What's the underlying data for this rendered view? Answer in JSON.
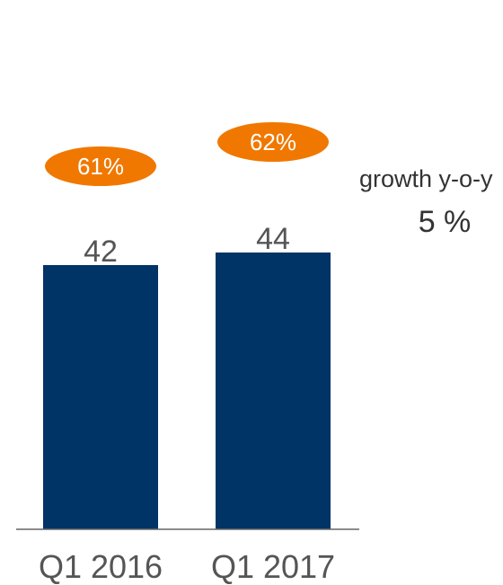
{
  "chart_data": {
    "type": "bar",
    "categories": [
      "Q1 2016",
      "Q1 2017"
    ],
    "values": [
      42,
      44
    ],
    "value_labels": [
      "42",
      "44"
    ],
    "annotations": [
      "61%",
      "62%"
    ],
    "ylim": [
      0,
      60
    ],
    "grid": false,
    "title": "",
    "xlabel": "",
    "ylabel": "",
    "colors": {
      "bar": "#003366",
      "annotation_pill": "#F07800",
      "axis": "#666666"
    }
  },
  "growth": {
    "label": "growth y-o-y",
    "value": "5 %"
  }
}
